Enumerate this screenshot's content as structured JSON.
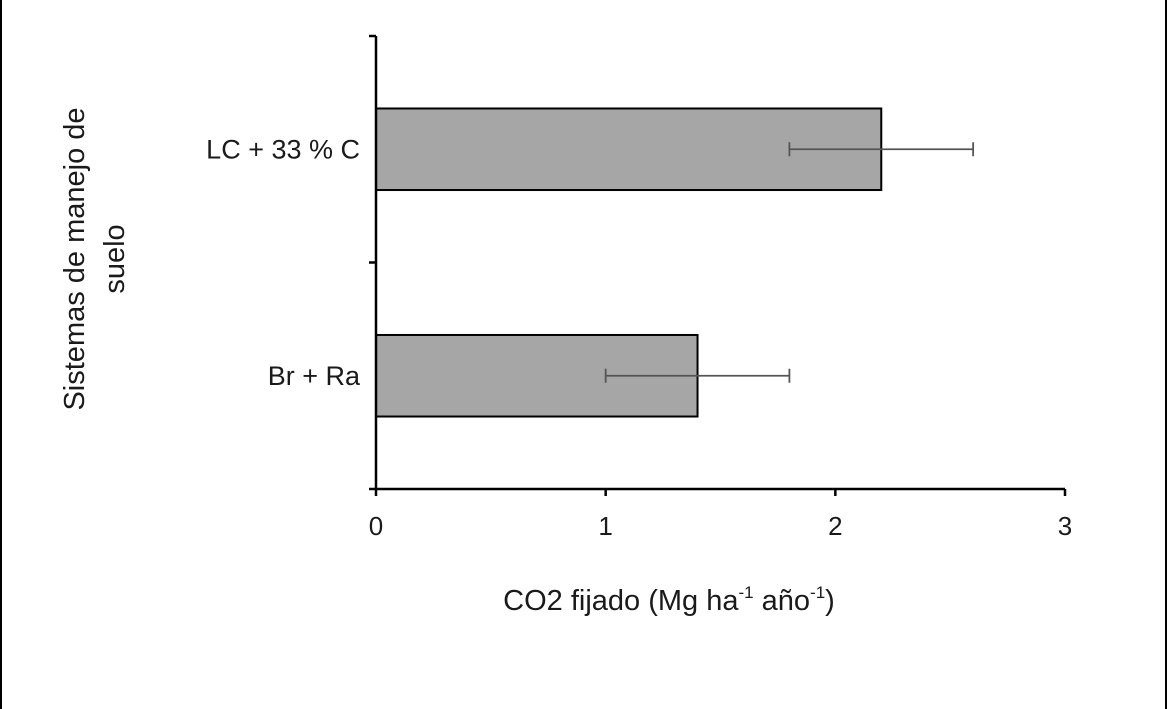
{
  "chart_data": {
    "type": "bar",
    "orientation": "horizontal",
    "categories": [
      "LC + 33 % C",
      "Br + Ra"
    ],
    "values": [
      2.2,
      1.4
    ],
    "error": [
      0.4,
      0.4
    ],
    "xlim": [
      0,
      3
    ],
    "xticks": [
      "0",
      "1",
      "2",
      "3"
    ],
    "xlabel": {
      "main": "CO2  fijado (Mg ha",
      "sup1": "-1",
      "mid": " año",
      "sup2": "-1",
      "end": ")"
    },
    "ylabel_line1": "Sistemas de manejo de",
    "ylabel_line2": "suelo",
    "grid": false,
    "legend": "none",
    "bar_color": "#a6a6a6",
    "bar_edge_color": "#000000"
  }
}
